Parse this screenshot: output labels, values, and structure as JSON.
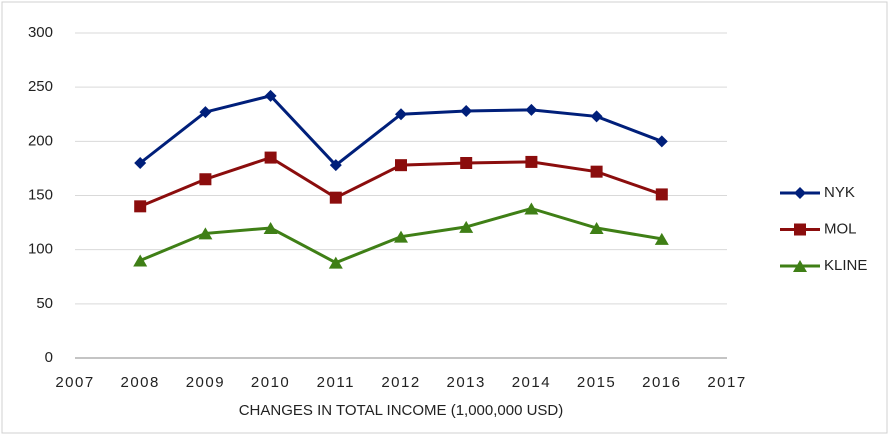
{
  "chart_data": {
    "type": "line",
    "x_label": "CHANGES IN TOTAL INCOME (1,000,000 USD)",
    "x": [
      2008,
      2009,
      2010,
      2011,
      2012,
      2013,
      2014,
      2015,
      2016
    ],
    "series": [
      {
        "name": "NYK",
        "color": "#001f7a",
        "marker": "diamond",
        "values": [
          180,
          227,
          242,
          178,
          225,
          228,
          229,
          223,
          200
        ]
      },
      {
        "name": "MOL",
        "color": "#8b0d0d",
        "marker": "square",
        "values": [
          140,
          165,
          185,
          148,
          178,
          180,
          181,
          172,
          151
        ]
      },
      {
        "name": "KLINE",
        "color": "#3f7f16",
        "marker": "triangle",
        "values": [
          90,
          115,
          120,
          88,
          112,
          121,
          138,
          120,
          110
        ]
      }
    ],
    "xlim": [
      2007,
      2017
    ],
    "xticks": [
      2007,
      2008,
      2009,
      2010,
      2011,
      2012,
      2013,
      2014,
      2015,
      2016,
      2017
    ],
    "ylim": [
      0,
      300
    ],
    "yticks": [
      0,
      50,
      100,
      150,
      200,
      250,
      300
    ],
    "grid": true,
    "legend": "right"
  }
}
